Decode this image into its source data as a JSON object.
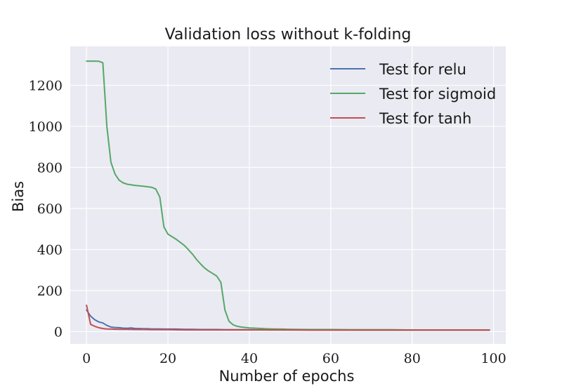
{
  "chart_data": {
    "type": "line",
    "title": "Validation loss without k-folding",
    "xlabel": "Number of epochs",
    "ylabel": "Bias",
    "xlim": [
      -4,
      103
    ],
    "ylim": [
      -60,
      1390
    ],
    "xticks": [
      0,
      20,
      40,
      60,
      80,
      100
    ],
    "yticks": [
      0,
      200,
      400,
      600,
      800,
      1000,
      1200
    ],
    "grid": true,
    "legend_position": "top-right",
    "colors": {
      "background": "#eaeaf2",
      "grid": "#ffffff"
    },
    "series": [
      {
        "name": "Test for relu",
        "color": "#4c72b0",
        "x": [
          0,
          1,
          2,
          3,
          4,
          5,
          6,
          7,
          8,
          9,
          10,
          11,
          12,
          13,
          14,
          15,
          16,
          17,
          18,
          19,
          20,
          22,
          24,
          26,
          28,
          30,
          32,
          34,
          36,
          38,
          40,
          45,
          50,
          55,
          60,
          65,
          70,
          75,
          80,
          85,
          90,
          95,
          99
        ],
        "y": [
          105,
          75,
          58,
          47,
          42,
          30,
          22,
          20,
          19,
          17,
          16,
          18,
          15,
          15,
          14,
          14,
          13,
          13,
          13,
          12,
          12,
          12,
          11,
          11,
          10,
          10,
          10,
          9,
          9,
          9,
          9,
          8,
          8,
          8,
          8,
          8,
          7,
          7,
          7,
          7,
          7,
          7,
          7
        ]
      },
      {
        "name": "Test for sigmoid",
        "color": "#55a868",
        "x": [
          0,
          1,
          2,
          3,
          4,
          5,
          6,
          7,
          8,
          9,
          10,
          12,
          14,
          16,
          17,
          18,
          19,
          20,
          22,
          24,
          25,
          26,
          27,
          28,
          29,
          30,
          31,
          32,
          33,
          34,
          35,
          36,
          37,
          38,
          40,
          42,
          44,
          46,
          48,
          50,
          55,
          60,
          65,
          70,
          75,
          80,
          85,
          90,
          95,
          99
        ],
        "y": [
          1318,
          1318,
          1318,
          1317,
          1310,
          1000,
          825,
          768,
          738,
          725,
          718,
          712,
          708,
          703,
          695,
          655,
          510,
          475,
          450,
          420,
          400,
          378,
          352,
          330,
          310,
          295,
          283,
          270,
          240,
          105,
          50,
          33,
          26,
          22,
          18,
          16,
          14,
          13,
          12,
          11,
          10,
          10,
          9,
          9,
          9,
          8,
          8,
          8,
          8,
          8
        ]
      },
      {
        "name": "Test for tanh",
        "color": "#c44e52",
        "x": [
          0,
          1,
          2,
          3,
          4,
          5,
          6,
          8,
          10,
          12,
          14,
          16,
          18,
          20,
          25,
          30,
          35,
          40,
          45,
          50,
          55,
          60,
          65,
          70,
          75,
          80,
          85,
          90,
          95,
          99
        ],
        "y": [
          128,
          35,
          26,
          19,
          15,
          13,
          12,
          11,
          11,
          10,
          10,
          9,
          9,
          9,
          8,
          8,
          8,
          8,
          8,
          8,
          7,
          7,
          7,
          7,
          7,
          7,
          7,
          7,
          7,
          7
        ]
      }
    ]
  }
}
